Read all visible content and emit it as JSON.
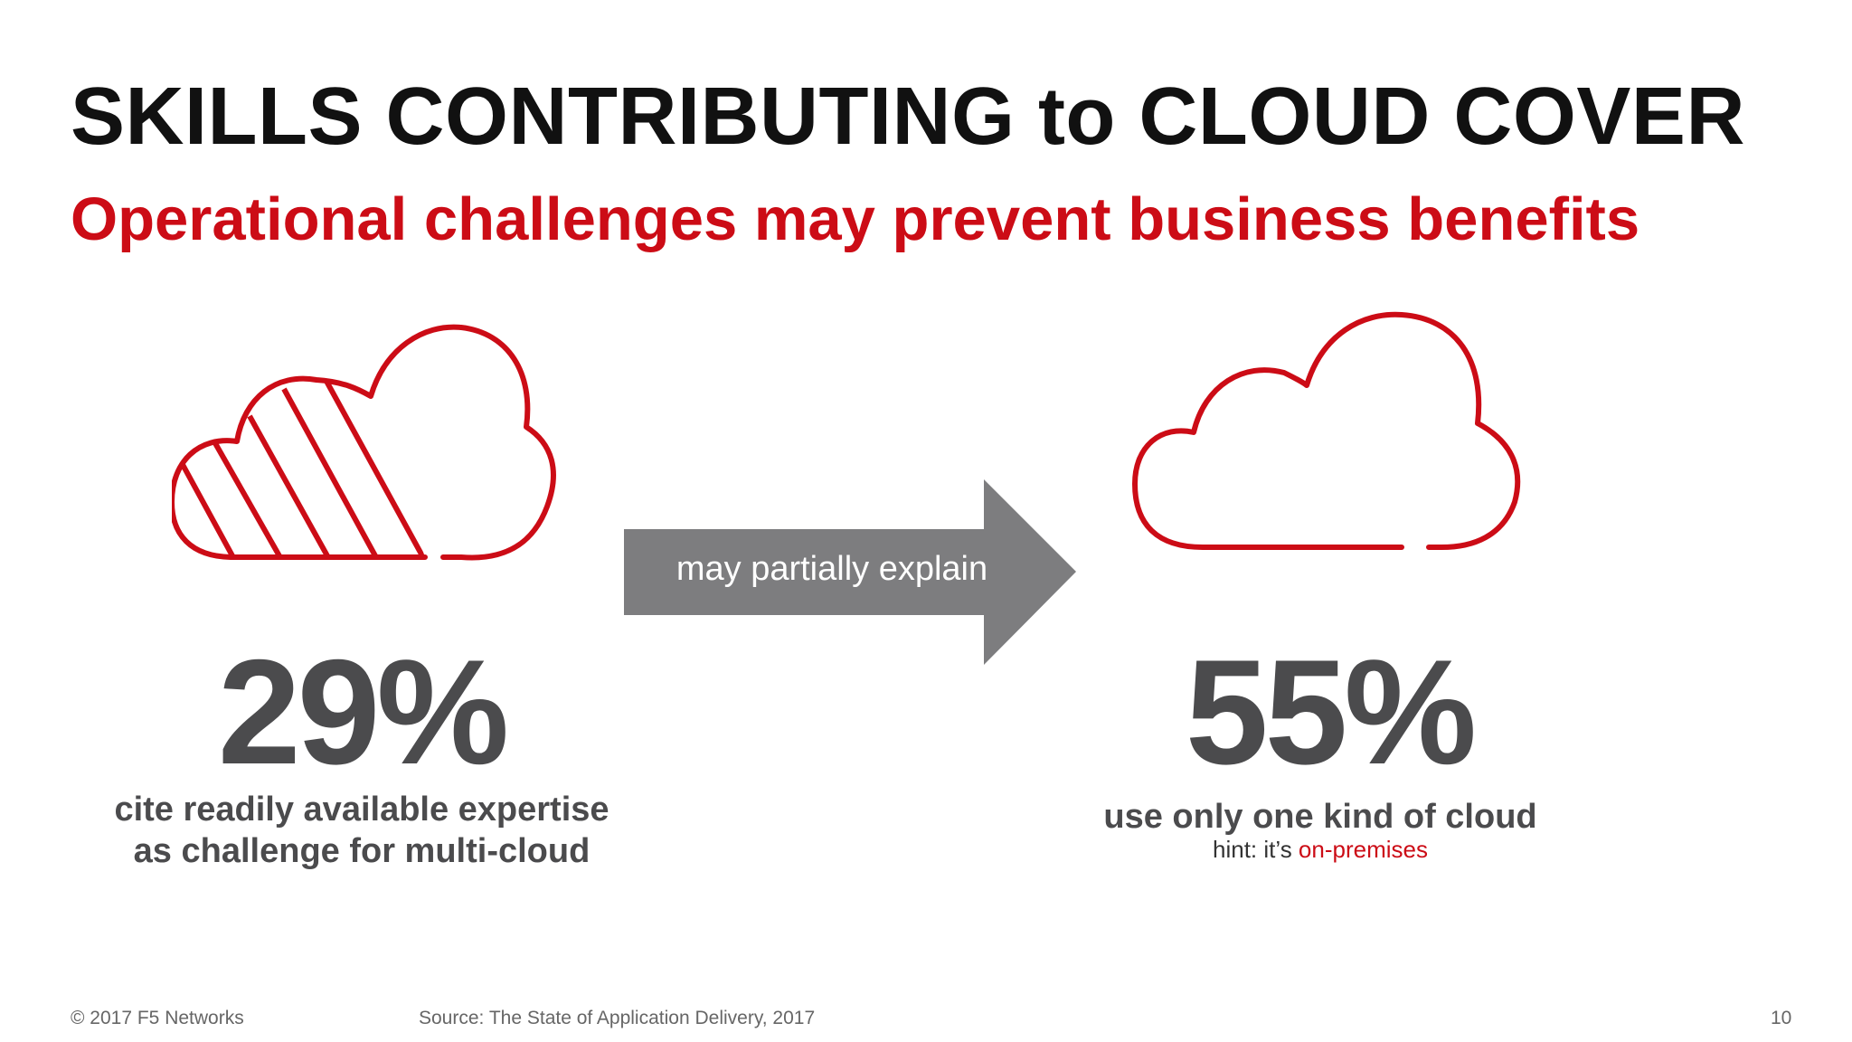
{
  "slide": {
    "title": "SKILLS CONTRIBUTING to CLOUD COVER",
    "subtitle": "Operational challenges may prevent business benefits",
    "arrow_label": "may partially explain",
    "left": {
      "stat": "29%",
      "desc_line1": "cite readily available expertise",
      "desc_line2": "as challenge for multi-cloud",
      "icon": "striped-cloud-icon"
    },
    "right": {
      "stat": "55%",
      "desc": "use only one kind of cloud",
      "hint_prefix": "hint: it’s ",
      "hint_highlight": "on-premises",
      "icon": "cloud-icon"
    },
    "footer": {
      "copyright": "© 2017 F5 Networks",
      "source": "Source: The State of Application Delivery, 2017",
      "page": "10"
    },
    "colors": {
      "accent": "#cc0c16",
      "stat_gray": "#4b4b4d",
      "arrow_gray": "#7d7d7f"
    }
  }
}
